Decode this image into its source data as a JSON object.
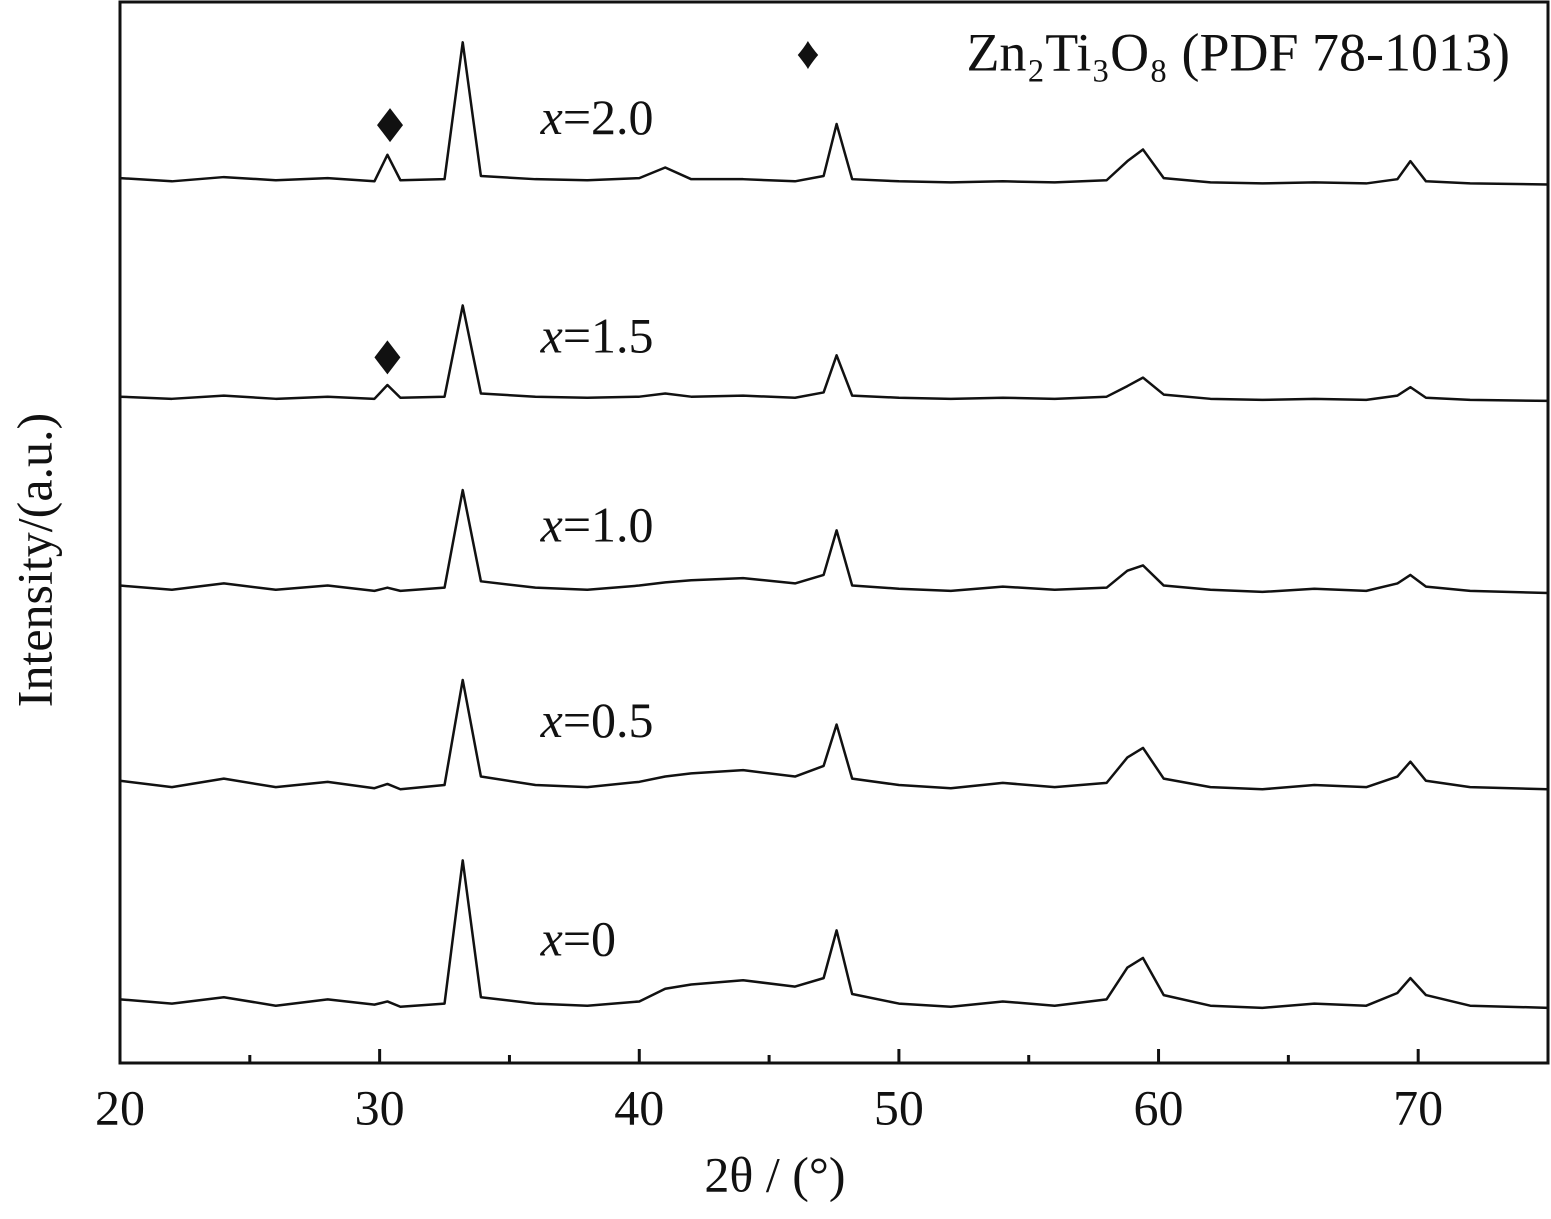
{
  "chart_data": {
    "type": "line",
    "x_label": "2θ / (°)",
    "y_label": "Intensity/(a.u.)",
    "xlim": [
      20,
      75
    ],
    "xticks": [
      20,
      30,
      40,
      50,
      60,
      70
    ],
    "xminorticks": [
      25,
      35,
      45,
      55,
      65
    ],
    "ylim": [
      0,
      100
    ],
    "legend_marker": "♦",
    "legend_text": "Zn₂Ti₃O₈ (PDF 78-1013)",
    "markers": [
      {
        "x": 30.4,
        "y": 88.4
      },
      {
        "x": 30.3,
        "y": 66.5
      }
    ],
    "color": "#111111",
    "x": [
      20,
      22,
      24,
      26,
      28,
      29.8,
      30.3,
      30.8,
      32.5,
      33.2,
      33.9,
      36,
      38,
      40,
      41,
      42,
      44,
      46,
      47.1,
      47.6,
      48.2,
      50,
      52,
      54,
      56,
      58,
      58.8,
      59.4,
      60.2,
      62,
      64,
      66,
      68,
      69.2,
      69.7,
      70.3,
      72,
      75
    ],
    "series": [
      {
        "name": "x=0",
        "values": [
          6.0,
          5.6,
          6.2,
          5.4,
          6.0,
          5.5,
          5.8,
          5.3,
          5.6,
          19.1,
          6.2,
          5.6,
          5.4,
          5.8,
          7.0,
          7.4,
          7.8,
          7.2,
          8.0,
          12.5,
          6.5,
          5.6,
          5.3,
          5.8,
          5.4,
          6.0,
          9.0,
          9.9,
          6.4,
          5.4,
          5.2,
          5.6,
          5.4,
          6.6,
          8.0,
          6.4,
          5.4,
          5.2
        ]
      },
      {
        "name": "x=0.5",
        "values": [
          26.6,
          26.0,
          26.8,
          26.0,
          26.5,
          25.9,
          26.3,
          25.8,
          26.2,
          36.1,
          27.0,
          26.2,
          26.0,
          26.5,
          27.0,
          27.3,
          27.6,
          27.0,
          28.0,
          31.9,
          26.8,
          26.2,
          25.9,
          26.4,
          26.0,
          26.4,
          28.8,
          29.7,
          26.8,
          26.0,
          25.8,
          26.2,
          26.0,
          27.0,
          28.4,
          26.6,
          26.0,
          25.8
        ]
      },
      {
        "name": "x=1.0",
        "values": [
          45.0,
          44.6,
          45.2,
          44.6,
          45.0,
          44.5,
          44.8,
          44.5,
          44.8,
          54.0,
          45.4,
          44.8,
          44.6,
          45.0,
          45.3,
          45.5,
          45.7,
          45.2,
          46.0,
          50.2,
          45.0,
          44.7,
          44.5,
          44.9,
          44.6,
          44.8,
          46.4,
          46.9,
          45.0,
          44.6,
          44.4,
          44.7,
          44.5,
          45.2,
          46.0,
          44.9,
          44.5,
          44.3
        ]
      },
      {
        "name": "x=1.5",
        "values": [
          62.8,
          62.6,
          62.9,
          62.6,
          62.8,
          62.6,
          63.9,
          62.7,
          62.8,
          71.4,
          63.1,
          62.8,
          62.7,
          62.8,
          63.1,
          62.8,
          62.9,
          62.7,
          63.2,
          66.7,
          62.9,
          62.7,
          62.6,
          62.7,
          62.6,
          62.8,
          63.8,
          64.6,
          63.0,
          62.6,
          62.5,
          62.6,
          62.5,
          62.9,
          63.7,
          62.7,
          62.5,
          62.4
        ]
      },
      {
        "name": "x=2.0",
        "values": [
          83.4,
          83.1,
          83.5,
          83.2,
          83.4,
          83.1,
          85.6,
          83.2,
          83.3,
          96.2,
          83.6,
          83.3,
          83.2,
          83.4,
          84.4,
          83.3,
          83.3,
          83.1,
          83.6,
          88.5,
          83.3,
          83.1,
          83.0,
          83.1,
          83.0,
          83.2,
          85.0,
          86.1,
          83.4,
          83.0,
          82.9,
          83.0,
          82.9,
          83.3,
          85.0,
          83.1,
          82.9,
          82.8
        ]
      }
    ]
  }
}
